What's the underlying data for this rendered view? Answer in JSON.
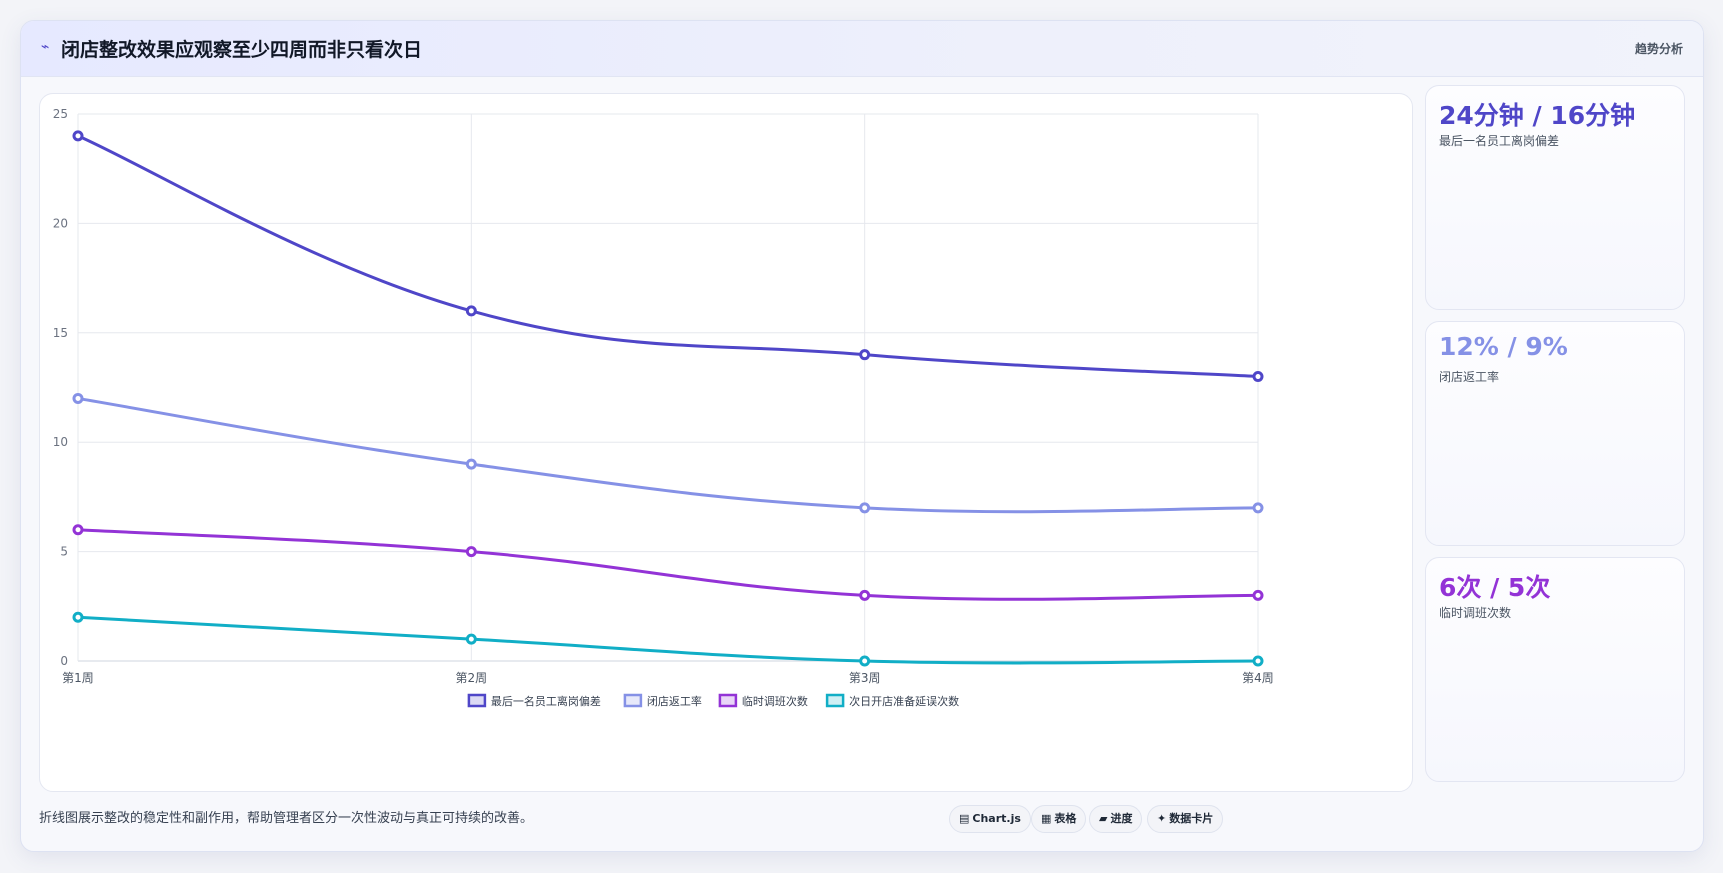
{
  "header": {
    "icon": "trend-icon",
    "title": "闭店整改效果应观察至少四周而非只看次日",
    "tag": "趋势分析"
  },
  "chart_data": {
    "type": "line",
    "categories": [
      "第1周",
      "第2周",
      "第3周",
      "第4周"
    ],
    "ylim": [
      0,
      25
    ],
    "yticks": [
      0,
      5,
      10,
      15,
      20,
      25
    ],
    "grid": true,
    "legend_position": "bottom",
    "series": [
      {
        "name": "最后一名员工离岗偏差",
        "values": [
          24,
          16,
          14,
          13
        ],
        "color": "#4f46c8"
      },
      {
        "name": "闭店返工率",
        "values": [
          12,
          9,
          7,
          7
        ],
        "color": "#8591e6"
      },
      {
        "name": "临时调班次数",
        "values": [
          6,
          5,
          3,
          3
        ],
        "color": "#9333d6"
      },
      {
        "name": "次日开店准备延误次数",
        "values": [
          2,
          1,
          0,
          0
        ],
        "color": "#11aec6"
      }
    ]
  },
  "kpis": [
    {
      "value": "24分钟 / 16分钟",
      "label": "最后一名员工离岗偏差",
      "color": "#4f46c8"
    },
    {
      "value": "12% / 9%",
      "label": "闭店返工率",
      "color": "#8591e6"
    },
    {
      "value": "6次 / 5次",
      "label": "临时调班次数",
      "color": "#9333d6"
    }
  ],
  "footer": {
    "note": "折线图展示整改的稳定性和副作用，帮助管理者区分一次性波动与真正可持续的改善。",
    "chips": [
      {
        "icon": "chart-icon",
        "glyph": "▤",
        "label": "Chart.js"
      },
      {
        "icon": "table-icon",
        "glyph": "▦",
        "label": "表格"
      },
      {
        "icon": "progress-icon",
        "glyph": "▰",
        "label": "进度"
      },
      {
        "icon": "card-icon",
        "glyph": "✦",
        "label": "数据卡片"
      }
    ]
  }
}
